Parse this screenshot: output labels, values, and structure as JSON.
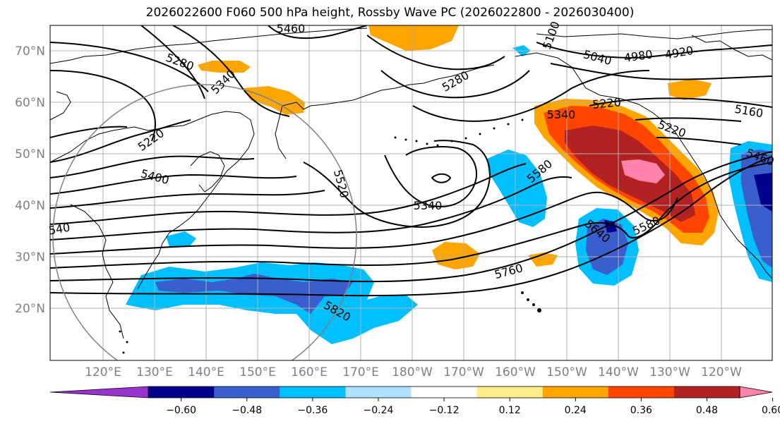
{
  "title": "2026022600 F060 500 hPa height, Rossby Wave PC (2026022800 - 2026030400)",
  "colors": {
    "ocean": "#ffffff",
    "coast": "#000000",
    "grid": "#b0b0b0",
    "contour": "#000000",
    "circle": "#808080",
    "axis_text": "#808080"
  },
  "map": {
    "lon_labels": [
      "120°E",
      "130°E",
      "140°E",
      "150°E",
      "160°E",
      "170°E",
      "180°W",
      "170°W",
      "160°W",
      "150°W",
      "140°W",
      "130°W",
      "120°W"
    ],
    "lat_labels": [
      "70°N",
      "60°N",
      "50°N",
      "40°N",
      "30°N",
      "20°N"
    ]
  },
  "contour_labels": [
    "5460",
    "5280",
    "5340",
    "5040",
    "4980",
    "4920",
    "5220",
    "5160",
    "5220",
    "5400",
    "5520",
    "5340",
    "5580",
    "5640",
    "5580",
    "5760",
    "5820",
    "5100",
    "5280",
    "5340",
    "5220",
    "540",
    "5460"
  ],
  "colorbar": {
    "ticks": [
      "−0.60",
      "−0.48",
      "−0.36",
      "−0.24",
      "−0.12",
      "0.12",
      "0.24",
      "0.36",
      "0.48",
      "0.60"
    ],
    "colors": [
      "#9a32cd",
      "#00008b",
      "#3a5fcd",
      "#00bfff",
      "#b0e2ff",
      "#ffffff",
      "#ffec8b",
      "#ffa500",
      "#ff4500",
      "#b22222",
      "#ff82ab"
    ]
  }
}
